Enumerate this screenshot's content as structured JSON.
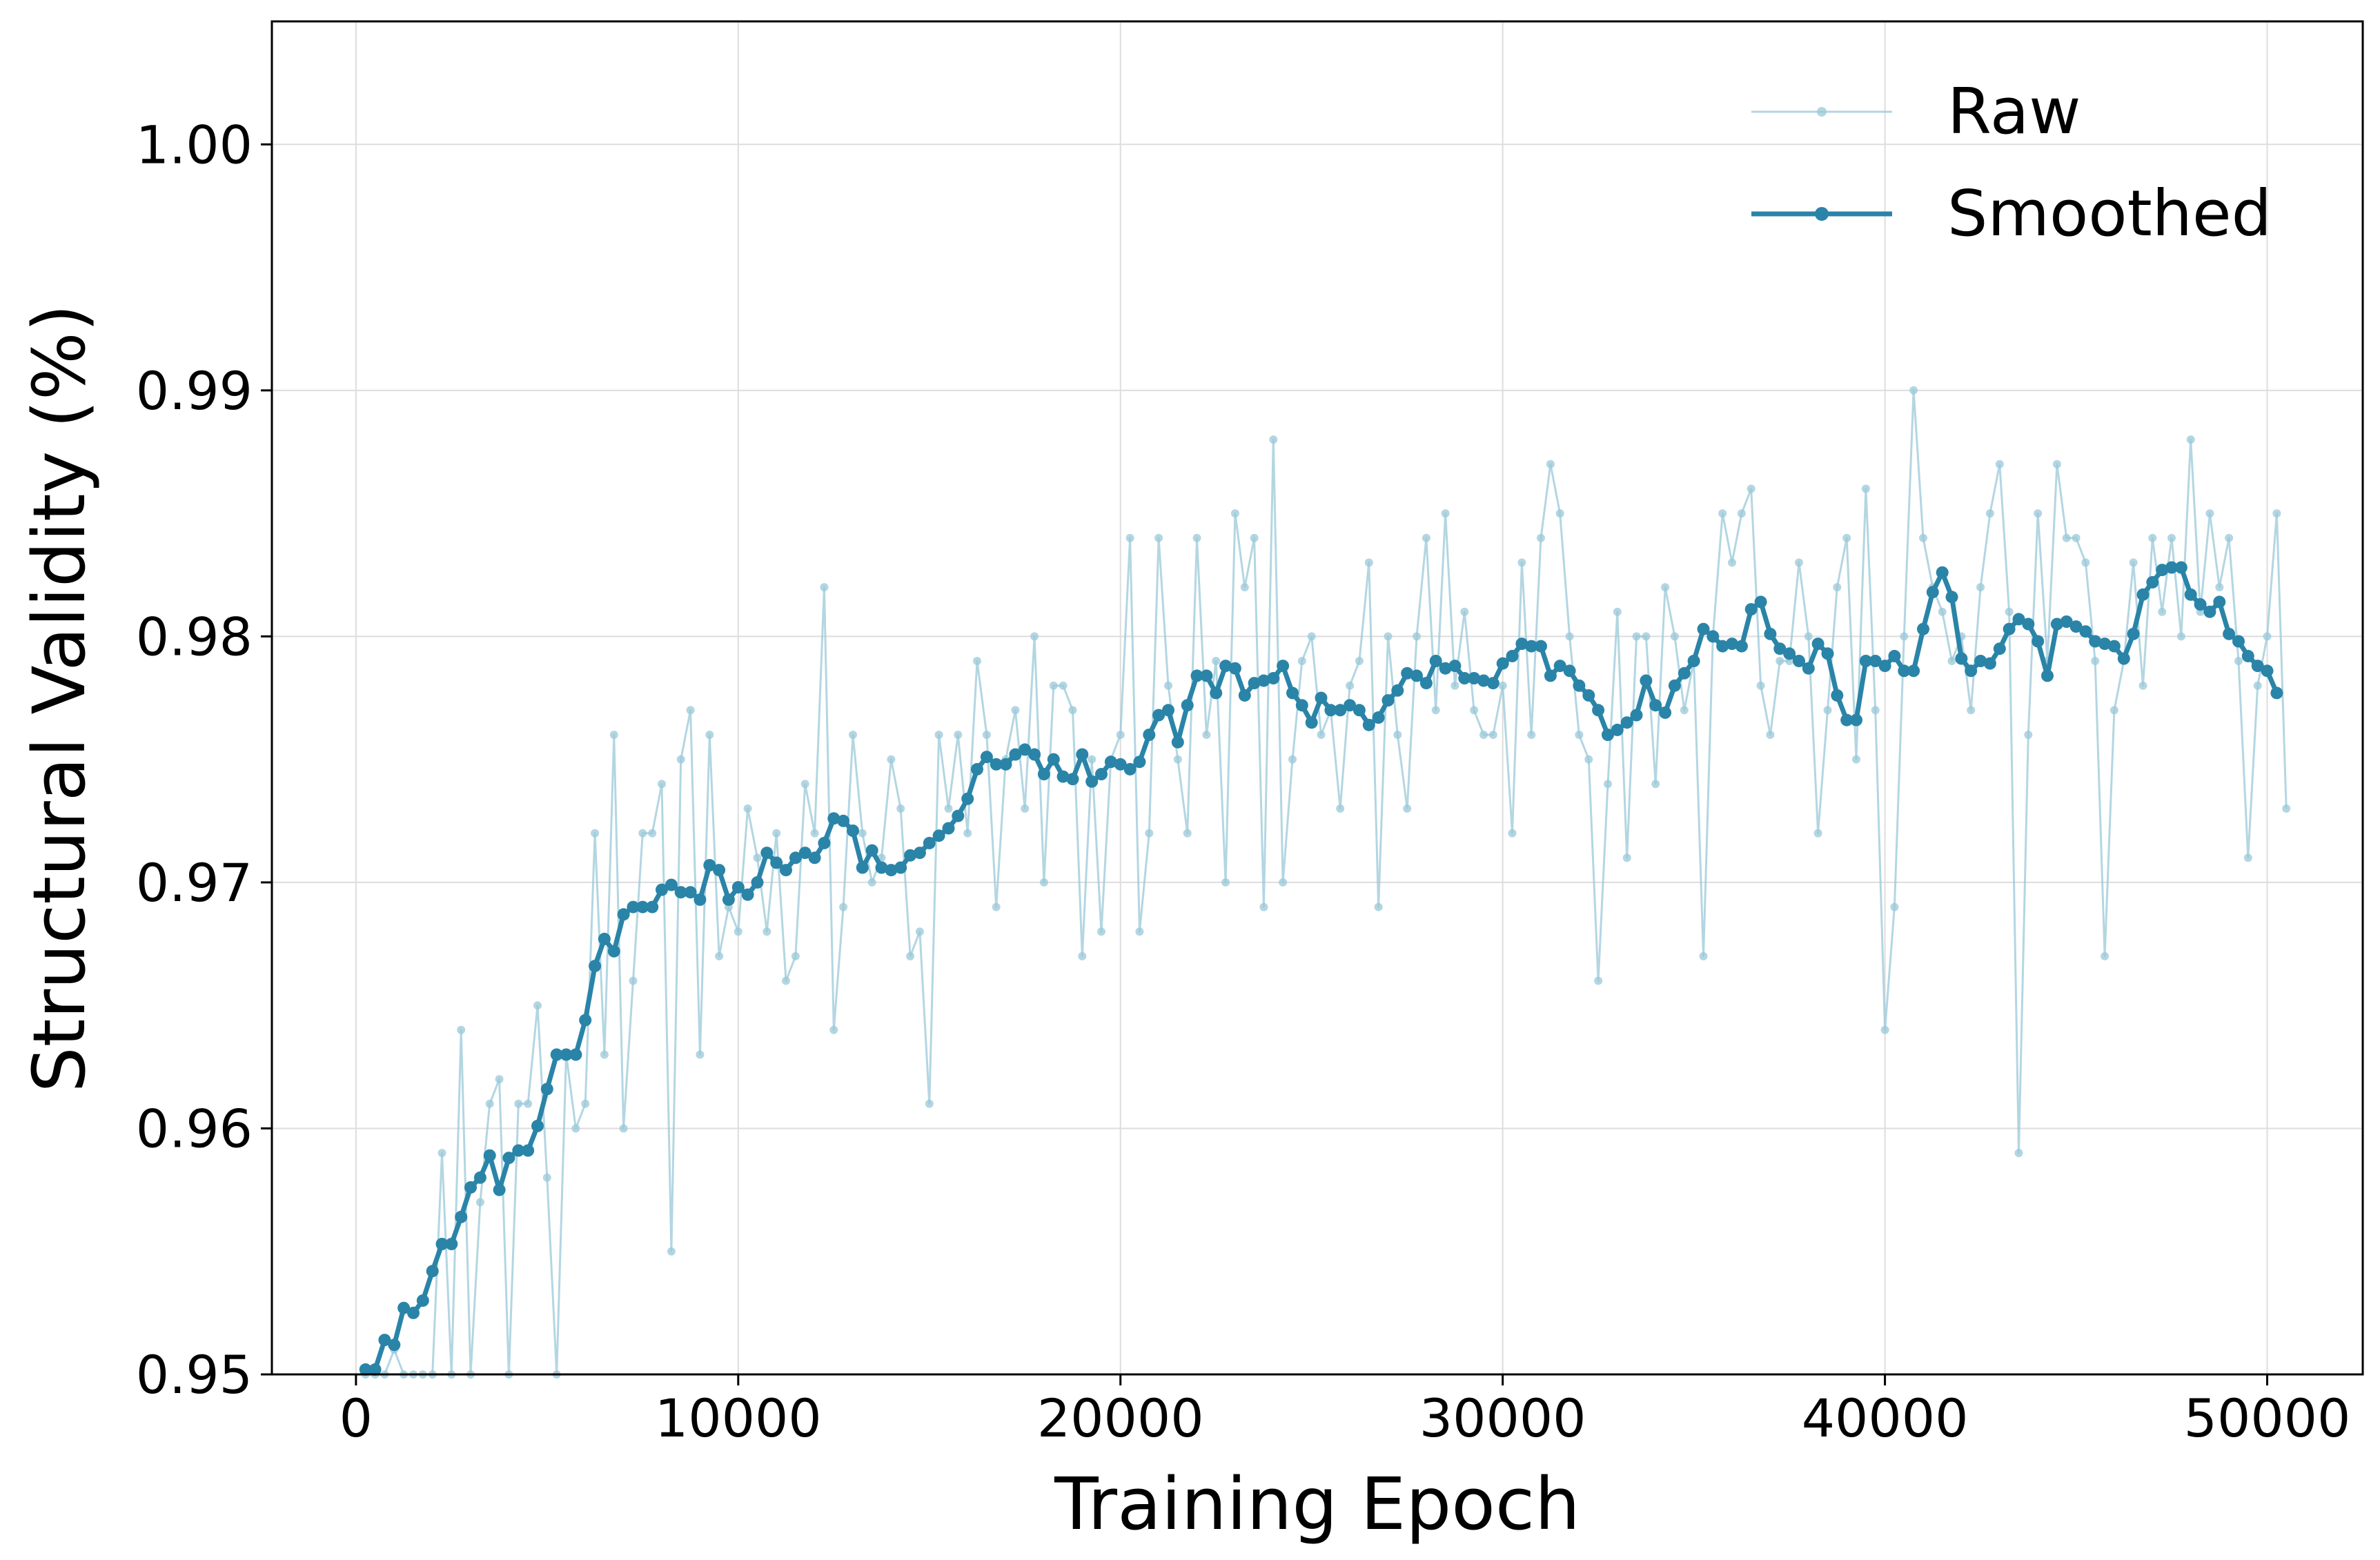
{
  "chart_data": {
    "type": "line",
    "xlabel": "Training Epoch",
    "ylabel": "Structural Validity (%)",
    "xlim": [
      -2200,
      52500
    ],
    "ylim": [
      0.95,
      1.005
    ],
    "xticks": [
      0,
      10000,
      20000,
      30000,
      40000,
      50000
    ],
    "xtick_labels": [
      "0",
      "10000",
      "20000",
      "30000",
      "40000",
      "50000"
    ],
    "yticks": [
      0.95,
      0.96,
      0.97,
      0.98,
      0.99,
      1.0
    ],
    "ytick_labels": [
      "0.95",
      "0.96",
      "0.97",
      "0.98",
      "0.99",
      "1.00"
    ],
    "grid": true,
    "legend_position": "top-right",
    "colors": {
      "raw": "#9ac8d8",
      "smoothed": "#2a84a8"
    },
    "series": [
      {
        "name": "Raw",
        "style": "thin line with small markers, translucent",
        "x_start": 250,
        "x_step": 250,
        "values": [
          0.95,
          0.95,
          0.95,
          0.951,
          0.95,
          0.95,
          0.95,
          0.95,
          0.959,
          0.95,
          0.964,
          0.95,
          0.957,
          0.961,
          0.962,
          0.95,
          0.961,
          0.961,
          0.965,
          0.958,
          0.95,
          0.963,
          0.96,
          0.961,
          0.972,
          0.963,
          0.976,
          0.96,
          0.966,
          0.972,
          0.972,
          0.974,
          0.955,
          0.975,
          0.977,
          0.963,
          0.976,
          0.967,
          0.969,
          0.968,
          0.973,
          0.971,
          0.968,
          0.972,
          0.966,
          0.967,
          0.974,
          0.972,
          0.982,
          0.964,
          0.969,
          0.976,
          0.972,
          0.97,
          0.971,
          0.975,
          0.973,
          0.967,
          0.968,
          0.961,
          0.976,
          0.973,
          0.976,
          0.972,
          0.979,
          0.976,
          0.969,
          0.975,
          0.977,
          0.973,
          0.98,
          0.97,
          0.978,
          0.978,
          0.977,
          0.967,
          0.975,
          0.968,
          0.975,
          0.976,
          0.984,
          0.968,
          0.972,
          0.984,
          0.978,
          0.975,
          0.972,
          0.984,
          0.976,
          0.979,
          0.97,
          0.985,
          0.982,
          0.984,
          0.969,
          0.988,
          0.97,
          0.975,
          0.979,
          0.98,
          0.976,
          0.977,
          0.973,
          0.978,
          0.979,
          0.983,
          0.969,
          0.98,
          0.976,
          0.973,
          0.98,
          0.984,
          0.977,
          0.985,
          0.978,
          0.981,
          0.977,
          0.976,
          0.976,
          0.978,
          0.972,
          0.983,
          0.976,
          0.984,
          0.987,
          0.985,
          0.98,
          0.976,
          0.975,
          0.966,
          0.974,
          0.981,
          0.971,
          0.98,
          0.98,
          0.974,
          0.982,
          0.98,
          0.977,
          0.979,
          0.967,
          0.98,
          0.985,
          0.983,
          0.985,
          0.986,
          0.978,
          0.976,
          0.979,
          0.979,
          0.983,
          0.98,
          0.972,
          0.977,
          0.982,
          0.984,
          0.975,
          0.986,
          0.977,
          0.964,
          0.969,
          0.98,
          0.99,
          0.984,
          0.982,
          0.981,
          0.979,
          0.98,
          0.977,
          0.982,
          0.985,
          0.987,
          0.981,
          0.959,
          0.976,
          0.985,
          0.979,
          0.987,
          0.984,
          0.984,
          0.983,
          0.979,
          0.967,
          0.977,
          0.979,
          0.983,
          0.978,
          0.984,
          0.981,
          0.984,
          0.98,
          0.988,
          0.981,
          0.985,
          0.982,
          0.984,
          0.979,
          0.971,
          0.978,
          0.98,
          0.985,
          0.973
        ]
      },
      {
        "name": "Smoothed",
        "style": "thick line with markers",
        "x_start": 250,
        "x_step": 250,
        "values": [
          0.9502,
          0.9502,
          0.9514,
          0.9512,
          0.9527,
          0.9525,
          0.953,
          0.9542,
          0.9553,
          0.9553,
          0.9564,
          0.9576,
          0.958,
          0.9589,
          0.9575,
          0.9588,
          0.9591,
          0.9591,
          0.9601,
          0.9616,
          0.963,
          0.963,
          0.963,
          0.9644,
          0.9666,
          0.9677,
          0.9672,
          0.9687,
          0.969,
          0.969,
          0.969,
          0.9697,
          0.9699,
          0.9696,
          0.9696,
          0.9693,
          0.9707,
          0.9705,
          0.9693,
          0.9698,
          0.9695,
          0.97,
          0.9712,
          0.9708,
          0.9705,
          0.971,
          0.9712,
          0.971,
          0.9716,
          0.9726,
          0.9725,
          0.9721,
          0.9706,
          0.9713,
          0.9706,
          0.9705,
          0.9706,
          0.9711,
          0.9712,
          0.9716,
          0.9719,
          0.9722,
          0.9727,
          0.9734,
          0.9746,
          0.9751,
          0.9748,
          0.9748,
          0.9752,
          0.9754,
          0.9752,
          0.9744,
          0.975,
          0.9743,
          0.9742,
          0.9752,
          0.9741,
          0.9744,
          0.9749,
          0.9748,
          0.9746,
          0.9749,
          0.976,
          0.9768,
          0.977,
          0.9757,
          0.9772,
          0.9784,
          0.9784,
          0.9777,
          0.9788,
          0.9787,
          0.9776,
          0.9781,
          0.9782,
          0.9783,
          0.9788,
          0.9777,
          0.9772,
          0.9765,
          0.9775,
          0.977,
          0.977,
          0.9772,
          0.977,
          0.9764,
          0.9767,
          0.9774,
          0.9778,
          0.9785,
          0.9784,
          0.9781,
          0.979,
          0.9787,
          0.9788,
          0.9783,
          0.9783,
          0.9782,
          0.9781,
          0.9789,
          0.9792,
          0.9797,
          0.9796,
          0.9796,
          0.9784,
          0.9788,
          0.9786,
          0.978,
          0.9776,
          0.977,
          0.976,
          0.9762,
          0.9765,
          0.9768,
          0.9782,
          0.9772,
          0.9769,
          0.978,
          0.9785,
          0.979,
          0.9803,
          0.98,
          0.9796,
          0.9797,
          0.9796,
          0.9811,
          0.9814,
          0.9801,
          0.9795,
          0.9793,
          0.979,
          0.9787,
          0.9797,
          0.9793,
          0.9776,
          0.9766,
          0.9766,
          0.979,
          0.979,
          0.9788,
          0.9792,
          0.9786,
          0.9786,
          0.9803,
          0.9818,
          0.9826,
          0.9816,
          0.9791,
          0.9786,
          0.979,
          0.9789,
          0.9795,
          0.9803,
          0.9807,
          0.9805,
          0.9798,
          0.9784,
          0.9805,
          0.9806,
          0.9804,
          0.9802,
          0.9798,
          0.9797,
          0.9796,
          0.9791,
          0.9801,
          0.9817,
          0.9822,
          0.9827,
          0.9828,
          0.9828,
          0.9817,
          0.9813,
          0.981,
          0.9814,
          0.9801,
          0.9798,
          0.9792,
          0.9788,
          0.9786,
          0.9777
        ]
      }
    ]
  }
}
